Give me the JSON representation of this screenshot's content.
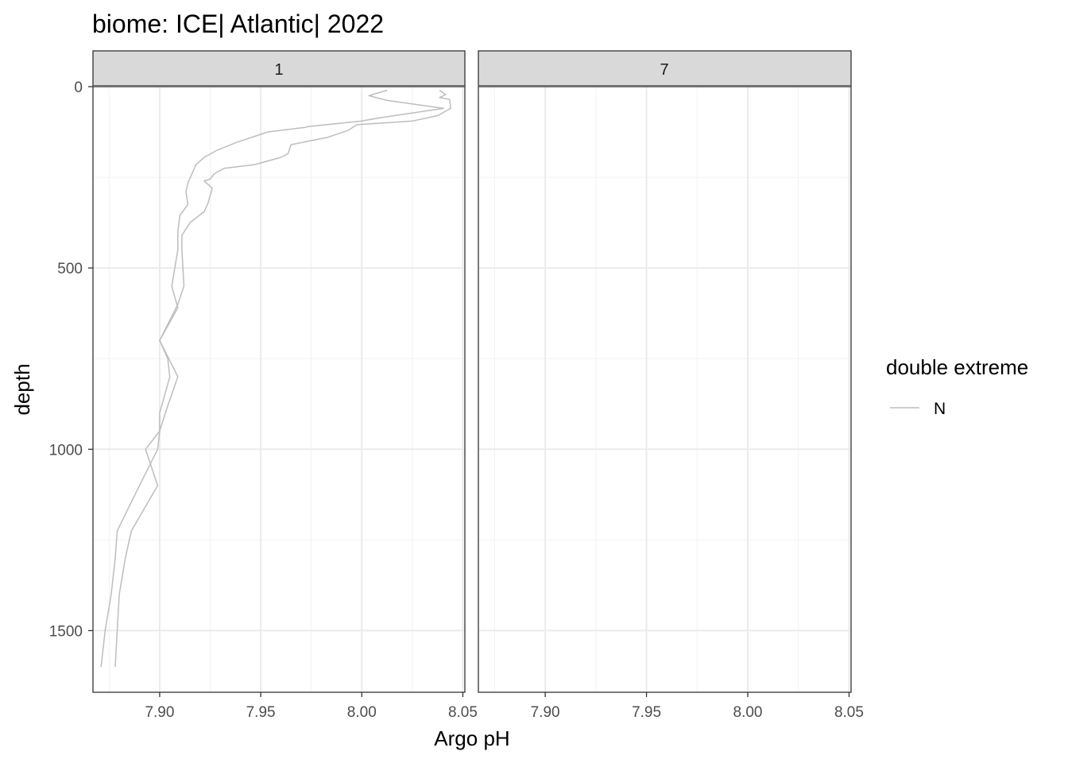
{
  "chart_data": {
    "type": "line",
    "title": "biome: ICE| Atlantic| 2022",
    "xlabel": "Argo pH",
    "ylabel": "depth",
    "xlim": [
      7.867,
      8.051
    ],
    "ylim": [
      0,
      1670
    ],
    "y_reversed": true,
    "x_ticks": [
      "7.90",
      "7.95",
      "8.00",
      "8.05"
    ],
    "x_tick_values": [
      7.9,
      7.95,
      8.0,
      8.05
    ],
    "y_ticks": [
      "0",
      "500",
      "1000",
      "1500"
    ],
    "y_tick_values": [
      0,
      500,
      1000,
      1500
    ],
    "grid": true,
    "legend": {
      "title": "double extreme",
      "position": "right",
      "entries": [
        {
          "label": "N",
          "color": "#bdbdbd"
        }
      ]
    },
    "panels": [
      {
        "label": "1",
        "series": [
          {
            "color": "#bdbdbd",
            "points": [
              [
                8.0125,
                10
              ],
              [
                8.0035,
                25
              ],
              [
                8.0125,
                38
              ],
              [
                8.0405,
                60
              ],
              [
                8.01,
                85
              ],
              [
                8.0,
                95
              ],
              [
                7.9735,
                110
              ],
              [
                7.9725,
                112
              ],
              [
                7.9535,
                125
              ],
              [
                7.9375,
                155
              ],
              [
                7.9285,
                175
              ],
              [
                7.922,
                195
              ],
              [
                7.918,
                215
              ],
              [
                7.916,
                240
              ],
              [
                7.914,
                265
              ],
              [
                7.913,
                290
              ],
              [
                7.914,
                325
              ],
              [
                7.91,
                355
              ],
              [
                7.909,
                400
              ],
              [
                7.909,
                450
              ],
              [
                7.906,
                550
              ],
              [
                7.909,
                610
              ],
              [
                7.9,
                700
              ],
              [
                7.904,
                750
              ],
              [
                7.905,
                800
              ],
              [
                7.9,
                900
              ],
              [
                7.9,
                950
              ],
              [
                7.899,
                1000
              ],
              [
                7.89,
                1100
              ],
              [
                7.879,
                1225
              ],
              [
                7.878,
                1300
              ],
              [
                7.876,
                1400
              ],
              [
                7.873,
                1500
              ],
              [
                7.871,
                1600
              ]
            ]
          },
          {
            "color": "#bdbdbd",
            "points": [
              [
                8.0385,
                10
              ],
              [
                8.0415,
                22
              ],
              [
                8.0385,
                30
              ],
              [
                8.0435,
                35
              ],
              [
                8.044,
                60
              ],
              [
                8.0375,
                80
              ],
              [
                8.025,
                95
              ],
              [
                7.9975,
                105
              ],
              [
                7.9935,
                120
              ],
              [
                7.983,
                140
              ],
              [
                7.965,
                160
              ],
              [
                7.9635,
                185
              ],
              [
                7.96,
                195
              ],
              [
                7.947,
                215
              ],
              [
                7.932,
                225
              ],
              [
                7.927,
                240
              ],
              [
                7.925,
                255
              ],
              [
                7.922,
                260
              ],
              [
                7.926,
                280
              ],
              [
                7.924,
                320
              ],
              [
                7.922,
                345
              ],
              [
                7.915,
                375
              ],
              [
                7.911,
                410
              ],
              [
                7.911,
                450
              ],
              [
                7.912,
                550
              ],
              [
                7.909,
                600
              ],
              [
                7.9,
                700
              ],
              [
                7.909,
                800
              ],
              [
                7.904,
                880
              ],
              [
                7.9,
                950
              ],
              [
                7.893,
                1000
              ],
              [
                7.899,
                1100
              ],
              [
                7.886,
                1225
              ],
              [
                7.883,
                1300
              ],
              [
                7.88,
                1400
              ],
              [
                7.879,
                1500
              ],
              [
                7.878,
                1600
              ]
            ]
          }
        ]
      },
      {
        "label": "7",
        "series": []
      }
    ]
  }
}
